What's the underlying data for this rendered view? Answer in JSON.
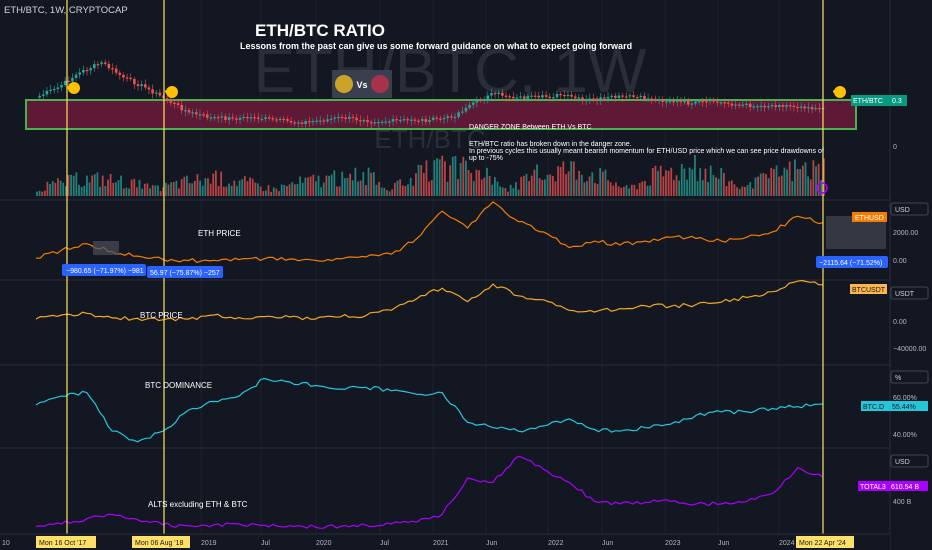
{
  "symbol_line": "ETH/BTC, 1W, CRYPTOCAP",
  "watermark": {
    "main": "ETH/BTC, 1W",
    "sub": "ETH/BTC"
  },
  "title": "ETH/BTC RATIO",
  "subtitle": "Lessons from the past can give us some forward guidance on what to expect going forward",
  "danger_note": {
    "heading": "DANGER ZONE  Between ETH Vs BTC",
    "line1": "ETH/BTC ratio has broken down in the danger zone.",
    "line2": "In previous cycles this usually meant bearish momentum for ETH/USD  price which we can see price drawdowns of",
    "line3": "up to -75%"
  },
  "vs_label": "Vs",
  "panels": {
    "eth_price_label": "ETH PRICE",
    "btc_price_label": "BTC PRICE",
    "btc_dom_label": "BTC DOMINANCE",
    "alts_label": "ALTS excluding ETH & BTC"
  },
  "measure_boxes": [
    {
      "text": "−980.65 (−71.97%) −981",
      "color": "#2962ff"
    },
    {
      "text": "56.97 (−75.87%) −257",
      "color": "#2962ff"
    },
    {
      "text": "−2115.64 (−71.52%)",
      "color": "#2962ff"
    }
  ],
  "right_axis": {
    "ethbtc": {
      "tag": "ETH/BTC",
      "value": "0.3",
      "tick": "0",
      "color": "#089981"
    },
    "ethusd": {
      "unit": "USD",
      "tag": "ETHUSD",
      "ticks": [
        "2000.00",
        "0.00"
      ],
      "color": "#f57c00"
    },
    "btcusdt": {
      "unit": "USDT",
      "tag": "BTCUSDT",
      "ticks": [
        "0.00",
        "−40000.00"
      ],
      "color": "#ffb74d"
    },
    "btcd": {
      "unit": "%",
      "tag": "BTC.D",
      "value": "55.44%",
      "ticks": [
        "60.00%",
        "40.00%"
      ],
      "color": "#26c6da"
    },
    "total3": {
      "unit": "USD",
      "tag": "TOTAL3",
      "value": "610.54 B",
      "ticks": [
        "400 B"
      ],
      "color": "#aa00ff"
    }
  },
  "time_axis": {
    "labels": [
      "10",
      "2019",
      "Jul",
      "2020",
      "Jul",
      "2021",
      "Jun",
      "2022",
      "Jun",
      "2023",
      "Jun",
      "2024"
    ],
    "highlights": [
      "Mon 16 Oct '17",
      "Mon 06 Aug '18",
      "Mon 22 Apr '24"
    ]
  },
  "colors": {
    "background": "#131722",
    "zone_fill": "#6b1a3a",
    "zone_border": "#4caf50",
    "vline": "#ffe066",
    "ethusd_line": "#f57c00",
    "btcusdt_line": "#f5a623",
    "btcd_line": "#26c6da",
    "total3_line": "#aa00ff",
    "candle_up": "#26a69a",
    "candle_down": "#ef5350"
  },
  "chart_data": [
    {
      "type": "line",
      "title": "ETH/BTC RATIO",
      "series": [
        {
          "name": "ETH/BTC",
          "values": [
            0.07,
            0.09,
            0.12,
            0.14,
            0.11,
            0.09,
            0.065,
            0.04,
            0.03,
            0.028,
            0.03,
            0.025,
            0.02,
            0.024,
            0.03,
            0.025,
            0.022,
            0.025,
            0.025,
            0.03,
            0.06,
            0.078,
            0.07,
            0.07,
            0.075,
            0.065,
            0.068,
            0.072,
            0.068,
            0.063,
            0.058,
            0.062,
            0.056,
            0.053,
            0.055,
            0.052,
            0.049
          ]
        }
      ],
      "ylim": [
        0.015,
        0.155
      ]
    },
    {
      "type": "line",
      "series": [
        {
          "name": "ETHUSD",
          "values": [
            300,
            900,
            1400,
            800,
            450,
            200,
            110,
            130,
            180,
            250,
            230,
            130,
            240,
            390,
            600,
            1800,
            3900,
            2600,
            4600,
            3100,
            2300,
            1100,
            1600,
            1300,
            1600,
            1900,
            1800,
            1600,
            1900,
            2300,
            3500,
            3000
          ]
        }
      ],
      "ylim": [
        0,
        4900
      ]
    },
    {
      "type": "line",
      "series": [
        {
          "name": "BTCUSDT",
          "values": [
            5000,
            12000,
            15000,
            7000,
            6300,
            3800,
            5000,
            12000,
            7500,
            9300,
            8500,
            5000,
            9000,
            11000,
            20000,
            40000,
            58000,
            35000,
            65000,
            45000,
            38000,
            20000,
            17000,
            23000,
            28000,
            27000,
            30000,
            34000,
            42000,
            52000,
            70000,
            64000
          ]
        }
      ],
      "ylim": [
        0,
        72000
      ]
    },
    {
      "type": "line",
      "series": [
        {
          "name": "BTC.D",
          "values": [
            55,
            60,
            62,
            40,
            34,
            40,
            52,
            57,
            60,
            70,
            68,
            66,
            64,
            65,
            63,
            61,
            62,
            45,
            42,
            40,
            43,
            47,
            41,
            40,
            42,
            44,
            49,
            51,
            51,
            53,
            54,
            55.44
          ]
        }
      ],
      "ylim": [
        35,
        72
      ]
    },
    {
      "type": "line",
      "series": [
        {
          "name": "TOTAL3",
          "values": [
            40,
            70,
            130,
            180,
            120,
            60,
            50,
            60,
            70,
            55,
            50,
            35,
            40,
            55,
            70,
            90,
            180,
            600,
            550,
            850,
            700,
            550,
            330,
            300,
            320,
            330,
            300,
            300,
            330,
            420,
            720,
            610.54
          ]
        }
      ],
      "ylim": [
        0,
        900
      ]
    }
  ]
}
